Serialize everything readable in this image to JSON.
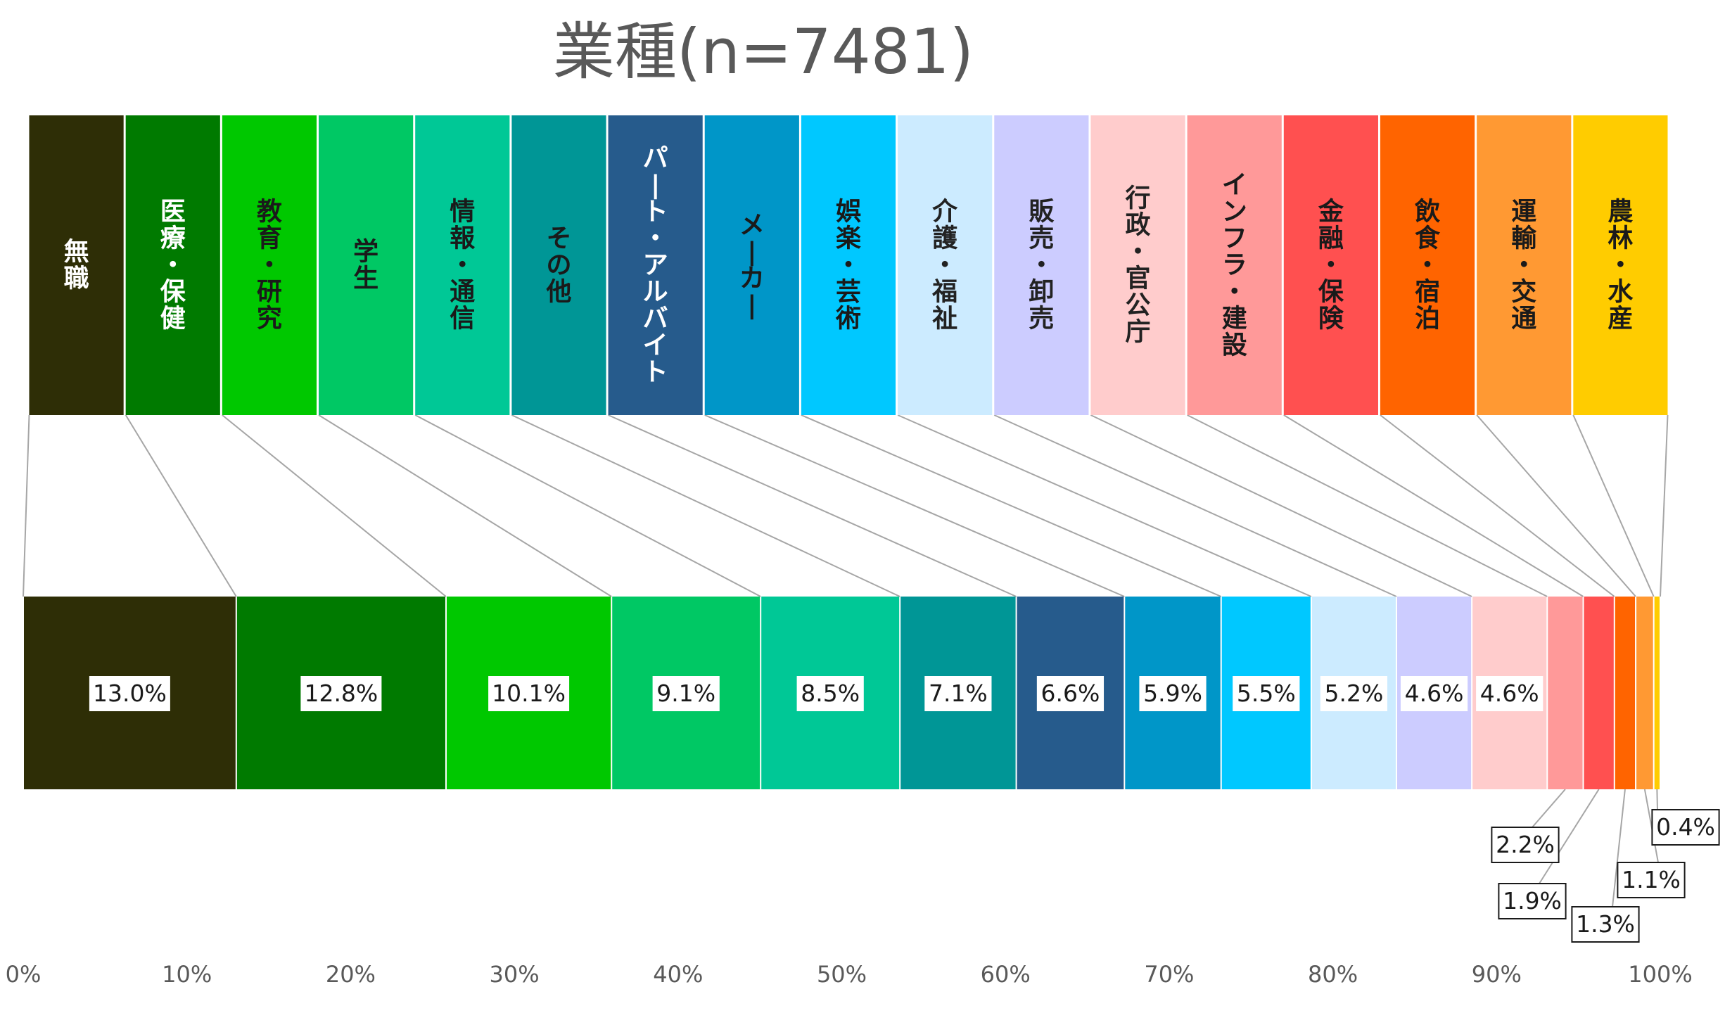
{
  "chart_data": {
    "type": "bar",
    "orientation": "horizontal-stacked-100",
    "title": "業種(n=7481)",
    "categories": [
      "無職",
      "医療・保健",
      "教育・研究",
      "学生",
      "情報・通信",
      "その他",
      "パート・アルバイト",
      "メーカー",
      "娯楽・芸術",
      "介護・福祉",
      "販売・卸売",
      "行政・官公庁",
      "インフラ・建設",
      "金融・保険",
      "飲食・宿泊",
      "運輸・交通",
      "農林・水産"
    ],
    "values": [
      13.0,
      12.8,
      10.1,
      9.1,
      8.5,
      7.1,
      6.6,
      5.9,
      5.5,
      5.2,
      4.6,
      4.6,
      2.2,
      1.9,
      1.3,
      1.1,
      0.4
    ],
    "value_labels": [
      "13.0%",
      "12.8%",
      "10.1%",
      "9.1%",
      "8.5%",
      "7.1%",
      "6.6%",
      "5.9%",
      "5.5%",
      "5.2%",
      "4.6%",
      "4.6%",
      "2.2%",
      "1.9%",
      "1.3%",
      "1.1%",
      "0.4%"
    ],
    "colors": [
      "#2e2e06",
      "#007a00",
      "#00c800",
      "#00c864",
      "#00c896",
      "#009696",
      "#265b8c",
      "#0096c8",
      "#00c8ff",
      "#ccebff",
      "#ccccff",
      "#ffcccc",
      "#ff9999",
      "#ff5050",
      "#ff6400",
      "#ff9933",
      "#ffcc00"
    ],
    "xlim": [
      0,
      100
    ],
    "x_ticks": [
      "0%",
      "10%",
      "20%",
      "30%",
      "40%",
      "50%",
      "60%",
      "70%",
      "80%",
      "90%",
      "100%"
    ],
    "legend": "top, one box per category, connected to its segment by lines",
    "grid": false
  }
}
